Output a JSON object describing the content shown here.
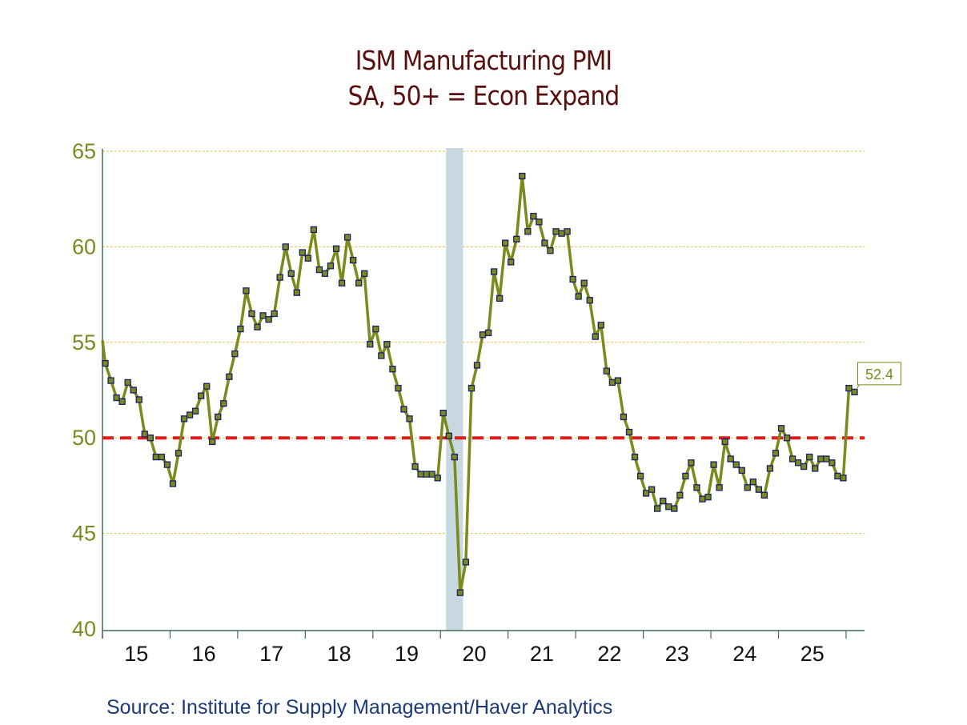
{
  "chart_data": {
    "type": "line",
    "title": "ISM Manufacturing PMI",
    "subtitle": "SA, 50+ = Econ Expand",
    "xlabel": "",
    "ylabel": "",
    "ylim": [
      40,
      65
    ],
    "yticks": [
      "40",
      "45",
      "50",
      "55",
      "60",
      "65"
    ],
    "xtick_labels": [
      "15",
      "16",
      "17",
      "18",
      "19",
      "20",
      "21",
      "22",
      "23",
      "24",
      "25"
    ],
    "x_start": "2015-01",
    "frequency": "monthly",
    "grid": true,
    "reference_line": {
      "value": 50,
      "style": "dashed",
      "color": "#e31a1a"
    },
    "recession_band": {
      "start": "2020-02",
      "end": "2020-04",
      "color": "#c8d8e0"
    },
    "last_value_label": "52.4",
    "series": [
      {
        "name": "ISM Manufacturing PMI",
        "color": "#7a8a1c",
        "marker_color": "#7a8a1c",
        "marker_edge": "#1a1f6b",
        "values": [
          53.9,
          53.0,
          52.1,
          51.9,
          52.9,
          52.5,
          52.0,
          50.2,
          50.0,
          49.0,
          49.0,
          48.6,
          47.6,
          49.2,
          51.0,
          51.2,
          51.4,
          52.2,
          52.7,
          49.8,
          51.1,
          51.8,
          53.2,
          54.4,
          55.7,
          57.7,
          56.5,
          55.8,
          56.4,
          56.2,
          56.5,
          58.4,
          60.0,
          58.6,
          57.6,
          59.7,
          59.4,
          60.9,
          58.8,
          58.6,
          59.0,
          59.9,
          58.1,
          60.5,
          59.3,
          58.1,
          58.6,
          54.9,
          55.7,
          54.3,
          54.9,
          53.6,
          52.6,
          51.5,
          51.0,
          48.5,
          48.1,
          48.1,
          48.1,
          47.9,
          51.3,
          50.1,
          49.0,
          41.9,
          43.5,
          52.6,
          53.8,
          55.4,
          55.5,
          58.7,
          57.3,
          60.2,
          59.2,
          60.4,
          63.7,
          60.8,
          61.6,
          61.3,
          60.2,
          59.8,
          60.8,
          60.7,
          60.8,
          58.3,
          57.4,
          58.1,
          57.2,
          55.3,
          55.9,
          53.5,
          52.9,
          53.0,
          51.1,
          50.3,
          49.0,
          48.0,
          47.1,
          47.3,
          46.3,
          46.7,
          46.4,
          46.3,
          47.0,
          48.0,
          48.7,
          47.4,
          46.8,
          46.9,
          48.6,
          47.4,
          49.8,
          48.9,
          48.6,
          48.3,
          47.4,
          47.7,
          47.3,
          47.0,
          48.4,
          49.2,
          50.5,
          50.0,
          48.9,
          48.7,
          48.5,
          49.0,
          48.4,
          48.9,
          48.9,
          48.7,
          48.0,
          47.9,
          52.6,
          52.4
        ]
      }
    ],
    "source": "Source:  Institute for Supply Management/Haver Analytics"
  }
}
